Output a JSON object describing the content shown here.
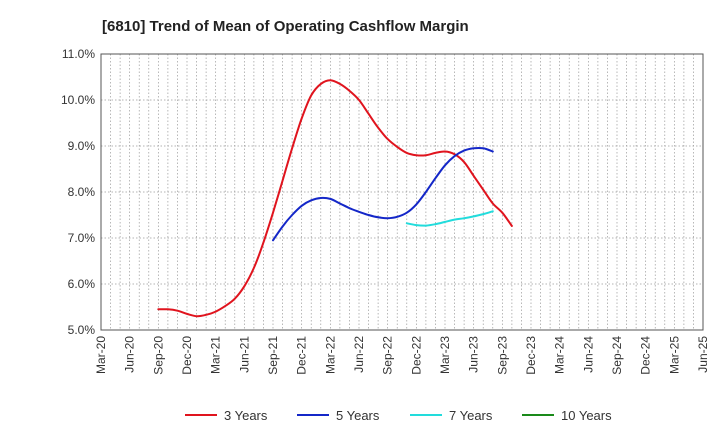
{
  "chart_data": {
    "type": "line",
    "title": "[6810]  Trend of Mean of Operating Cashflow Margin",
    "xlabel": "",
    "ylabel": "",
    "y_ticks": [
      "5.0%",
      "6.0%",
      "7.0%",
      "8.0%",
      "9.0%",
      "10.0%",
      "11.0%"
    ],
    "ylim": [
      5.0,
      11.0
    ],
    "x_ticks": [
      "Mar-20",
      "Jun-20",
      "Sep-20",
      "Dec-20",
      "Mar-21",
      "Jun-21",
      "Sep-21",
      "Dec-21",
      "Mar-22",
      "Jun-22",
      "Sep-22",
      "Dec-22",
      "Mar-23",
      "Jun-23",
      "Sep-23",
      "Dec-23",
      "Mar-24",
      "Jun-24",
      "Sep-24",
      "Dec-24",
      "Mar-25",
      "Jun-25"
    ],
    "grid": true,
    "legend_position": "bottom",
    "series": [
      {
        "name": "3 Years",
        "color": "#e0141e",
        "values": [
          5.45,
          5.45,
          5.42,
          5.35,
          5.3,
          5.33,
          5.4,
          5.52,
          5.68,
          5.95,
          6.35,
          6.9,
          7.55,
          8.25,
          8.95,
          9.6,
          10.1,
          10.35,
          10.43,
          10.35,
          10.2,
          10.0,
          9.7,
          9.4,
          9.15,
          8.98,
          8.85,
          8.8,
          8.8,
          8.85,
          8.88,
          8.82,
          8.65,
          8.35,
          8.05,
          7.75,
          7.55,
          7.26
        ]
      },
      {
        "name": "5 Years",
        "color": "#1427c8",
        "values": [
          null,
          null,
          null,
          null,
          null,
          null,
          null,
          null,
          null,
          null,
          null,
          null,
          6.95,
          7.25,
          7.5,
          7.7,
          7.82,
          7.87,
          7.85,
          7.75,
          7.65,
          7.57,
          7.5,
          7.45,
          7.43,
          7.46,
          7.55,
          7.73,
          8.0,
          8.3,
          8.58,
          8.78,
          8.9,
          8.95,
          8.95,
          8.88
        ]
      },
      {
        "name": "7 Years",
        "color": "#22dcdc",
        "values": [
          null,
          null,
          null,
          null,
          null,
          null,
          null,
          null,
          null,
          null,
          null,
          null,
          null,
          null,
          null,
          null,
          null,
          null,
          null,
          null,
          null,
          null,
          null,
          null,
          null,
          null,
          7.32,
          7.28,
          7.27,
          7.3,
          7.35,
          7.4,
          7.43,
          7.47,
          7.52,
          7.58
        ]
      },
      {
        "name": "10 Years",
        "color": "#1a8a1a",
        "values": []
      }
    ]
  }
}
